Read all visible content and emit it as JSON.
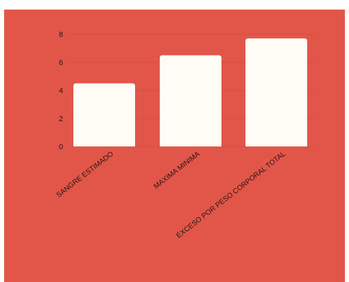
{
  "chart_data": {
    "type": "bar",
    "title": "",
    "xlabel": "",
    "ylabel": "",
    "categories": [
      "SANGRE ESTIMADO",
      "MAXIMA MINIMA",
      "EXCESO POR PESO CORPORAL TOTAL"
    ],
    "values": [
      4.5,
      6.5,
      7.7
    ],
    "ylim": [
      0,
      8
    ],
    "yticks": [
      0,
      2,
      4,
      6,
      8
    ],
    "grid": true,
    "legend": "none",
    "colors": {
      "background": "#e2564a",
      "bar": "#fffcf5",
      "text": "#2a1512",
      "grid": "#d94a40"
    }
  }
}
